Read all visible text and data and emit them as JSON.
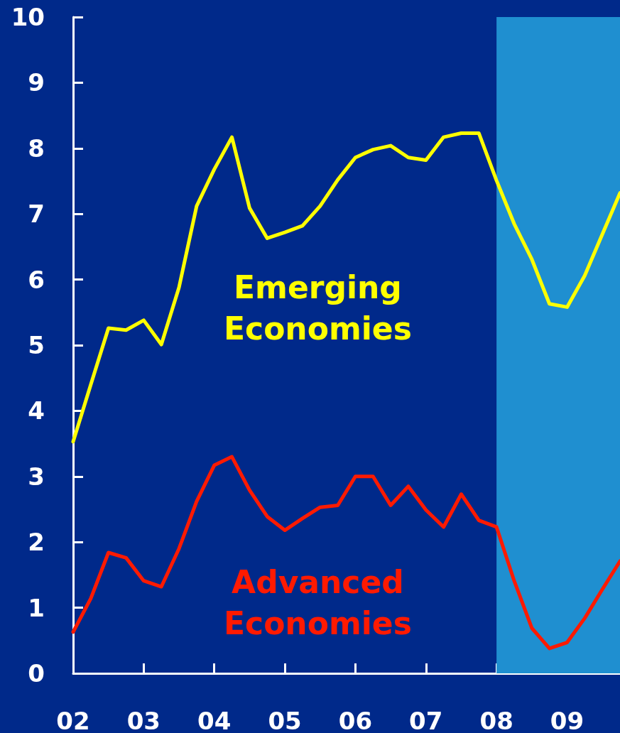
{
  "chart_data": {
    "type": "line",
    "x": [
      2002,
      2002.25,
      2002.5,
      2002.75,
      2003,
      2003.25,
      2003.5,
      2003.75,
      2004,
      2004.25,
      2004.5,
      2004.75,
      2005,
      2005.25,
      2005.5,
      2005.75,
      2006,
      2006.25,
      2006.5,
      2006.75,
      2007,
      2007.25,
      2007.5,
      2007.75,
      2008,
      2008.25,
      2008.5,
      2008.75,
      2009,
      2009.25,
      2009.5,
      2009.75
    ],
    "series": [
      {
        "name": "Emerging Economies",
        "color": "#ffff00",
        "values": [
          3.53,
          4.4,
          5.26,
          5.23,
          5.38,
          5.01,
          5.88,
          7.12,
          7.68,
          8.17,
          7.09,
          6.63,
          6.72,
          6.82,
          7.12,
          7.52,
          7.86,
          7.98,
          8.04,
          7.86,
          7.82,
          8.17,
          8.23,
          8.23,
          7.51,
          6.85,
          6.31,
          5.63,
          5.58,
          6.06,
          6.69,
          7.32
        ]
      },
      {
        "name": "Advanced Economies",
        "color": "#ff1a00",
        "values": [
          0.63,
          1.14,
          1.84,
          1.76,
          1.41,
          1.32,
          1.9,
          2.62,
          3.17,
          3.3,
          2.79,
          2.39,
          2.18,
          2.36,
          2.53,
          2.56,
          3.0,
          3.0,
          2.56,
          2.85,
          2.49,
          2.23,
          2.73,
          2.33,
          2.23,
          1.41,
          0.69,
          0.38,
          0.47,
          0.84,
          1.28,
          1.71
        ]
      }
    ],
    "xlim": [
      2002,
      2009.75
    ],
    "xticks": [
      {
        "value": 2002,
        "label": "02"
      },
      {
        "value": 2003,
        "label": "03"
      },
      {
        "value": 2004,
        "label": "04"
      },
      {
        "value": 2005,
        "label": "05"
      },
      {
        "value": 2006,
        "label": "06"
      },
      {
        "value": 2007,
        "label": "07"
      },
      {
        "value": 2008,
        "label": "08"
      },
      {
        "value": 2009,
        "label": "09"
      }
    ],
    "ylim": [
      0,
      10
    ],
    "yticks": [
      0,
      1,
      2,
      3,
      4,
      5,
      6,
      7,
      8,
      9,
      10
    ],
    "bands": [
      {
        "axis": "x",
        "from": 2008,
        "to": 2009.75,
        "color": "#1f8fd0"
      }
    ],
    "grid": false,
    "legend": false,
    "marker": "none",
    "line_style": "solid"
  }
}
